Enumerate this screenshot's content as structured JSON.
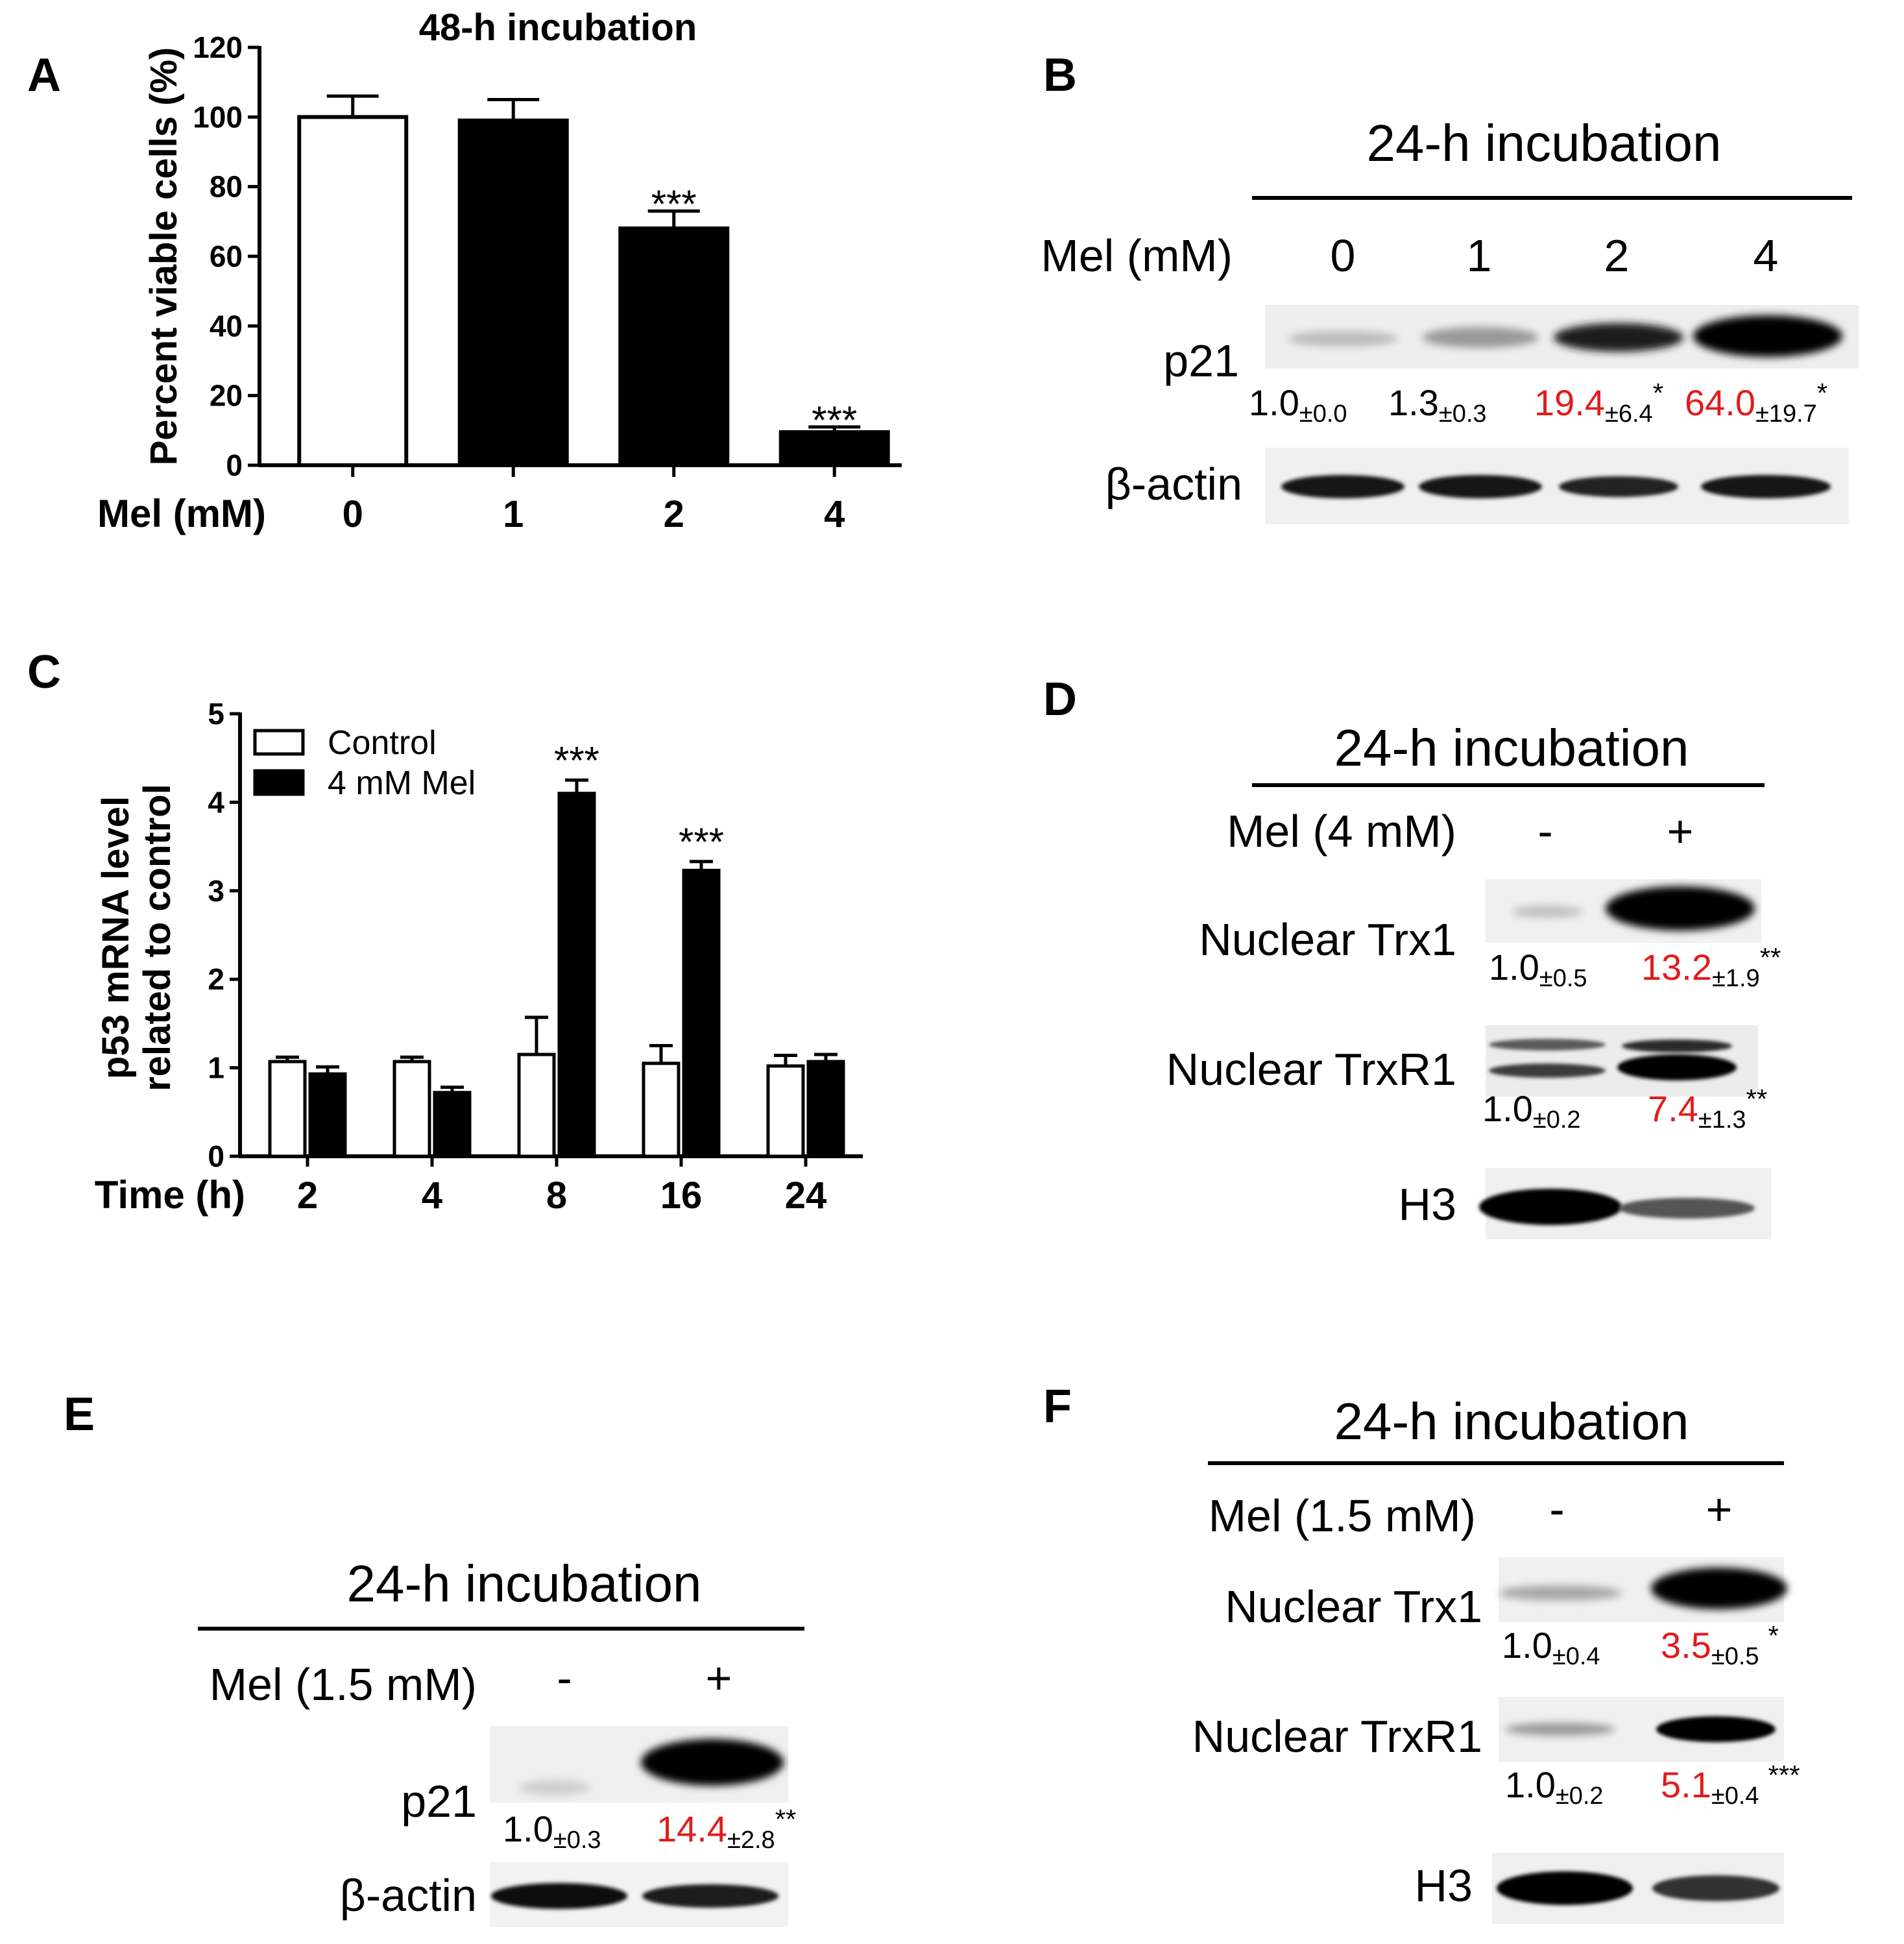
{
  "colors": {
    "text": "#000000",
    "highlight": "#e21b1b",
    "bar_empty": "#ffffff",
    "bar_filled": "#000000"
  },
  "chart_data": [
    {
      "panel": "A",
      "type": "bar",
      "title": "48-h incubation",
      "xlabel": "Mel (mM)",
      "ylabel": "Percent viable cells (%)",
      "categories": [
        "0",
        "1",
        "2",
        "4"
      ],
      "values": [
        100,
        99,
        68,
        9.5
      ],
      "errors": [
        6,
        6,
        5,
        1.5
      ],
      "fills": [
        "white",
        "black",
        "black",
        "black"
      ],
      "significance": [
        "",
        "",
        "***",
        "***"
      ],
      "ylim": [
        0,
        120
      ],
      "yticks": [
        "0",
        "20",
        "40",
        "60",
        "80",
        "100",
        "120"
      ]
    },
    {
      "panel": "C",
      "type": "bar",
      "xlabel": "Time (h)",
      "ylabel_lines": [
        "p53 mRNA level",
        "related to control"
      ],
      "categories": [
        "2",
        "4",
        "8",
        "16",
        "24"
      ],
      "series": [
        {
          "name": "Control",
          "values": [
            1.07,
            1.07,
            1.15,
            1.05,
            1.02
          ],
          "errors": [
            0.05,
            0.05,
            0.42,
            0.2,
            0.12
          ]
        },
        {
          "name": "4 mM Mel",
          "values": [
            0.93,
            0.72,
            4.1,
            3.23,
            1.07
          ],
          "errors": [
            0.08,
            0.06,
            0.15,
            0.1,
            0.08
          ]
        }
      ],
      "significance": [
        "",
        "",
        "***",
        "***",
        ""
      ],
      "legend_position": "top-left",
      "ylim": [
        0,
        5
      ],
      "yticks": [
        "0",
        "1",
        "2",
        "3",
        "4",
        "5"
      ]
    }
  ],
  "panels": {
    "A": {
      "letter": "A"
    },
    "B": {
      "letter": "B",
      "header": "24-h incubation",
      "condition_label": "Mel (mM)",
      "lanes": [
        "0",
        "1",
        "2",
        "4"
      ],
      "rows": [
        {
          "label": "p21",
          "band_strength": [
            0.15,
            0.3,
            0.85,
            1.0
          ]
        },
        {
          "label": "β-actin",
          "band_strength": [
            0.9,
            0.9,
            0.85,
            0.9
          ]
        }
      ],
      "quant": [
        {
          "value": "1.0",
          "err": "±0.0",
          "star": "",
          "red": false
        },
        {
          "value": "1.3",
          "err": "±0.3",
          "star": "",
          "red": false
        },
        {
          "value": "19.4",
          "err": "±6.4",
          "star": "*",
          "red": true
        },
        {
          "value": "64.0",
          "err": "±19.7",
          "star": "*",
          "red": true
        }
      ]
    },
    "C": {
      "letter": "C"
    },
    "D": {
      "letter": "D",
      "header": "24-h incubation",
      "condition_label": "Mel (4 mM)",
      "lanes": [
        "-",
        "+"
      ],
      "rows": [
        {
          "label": "Nuclear Trx1",
          "band_strength": [
            0.15,
            1.0
          ]
        },
        {
          "label": "Nuclear TrxR1",
          "band_strength": [
            0.6,
            0.95
          ]
        },
        {
          "label": "H3",
          "band_strength": [
            0.95,
            0.5
          ]
        }
      ],
      "quant_trx1": [
        {
          "value": "1.0",
          "err": "±0.5",
          "star": "",
          "red": false
        },
        {
          "value": "13.2",
          "err": "±1.9",
          "star": "**",
          "red": true
        }
      ],
      "quant_trxr1": [
        {
          "value": "1.0",
          "err": "±0.2",
          "star": "",
          "red": false
        },
        {
          "value": "7.4",
          "err": "±1.3",
          "star": "**",
          "red": true
        }
      ]
    },
    "E": {
      "letter": "E",
      "header": "24-h incubation",
      "condition_label": "Mel (1.5 mM)",
      "lanes": [
        "-",
        "+"
      ],
      "rows": [
        {
          "label": "p21",
          "band_strength": [
            0.1,
            1.0
          ]
        },
        {
          "label": "β-actin",
          "band_strength": [
            0.95,
            0.9
          ]
        }
      ],
      "quant": [
        {
          "value": "1.0",
          "err": "±0.3",
          "star": "",
          "red": false
        },
        {
          "value": "14.4",
          "err": "±2.8",
          "star": "**",
          "red": true
        }
      ]
    },
    "F": {
      "letter": "F",
      "header": "24-h incubation",
      "condition_label": "Mel (1.5 mM)",
      "lanes": [
        "-",
        "+"
      ],
      "rows": [
        {
          "label": "Nuclear Trx1",
          "band_strength": [
            0.2,
            1.0
          ]
        },
        {
          "label": "Nuclear TrxR1",
          "band_strength": [
            0.25,
            0.9
          ]
        },
        {
          "label": "H3",
          "band_strength": [
            0.95,
            0.7
          ]
        }
      ],
      "quant_trx1": [
        {
          "value": "1.0",
          "err": "±0.4",
          "star": "",
          "red": false
        },
        {
          "value": "3.5",
          "err": "±0.5",
          "star": "*",
          "red": true
        }
      ],
      "quant_trxr1": [
        {
          "value": "1.0",
          "err": "±0.2",
          "star": "",
          "red": false
        },
        {
          "value": "5.1",
          "err": "±0.4",
          "star": "***",
          "red": true
        }
      ]
    }
  }
}
